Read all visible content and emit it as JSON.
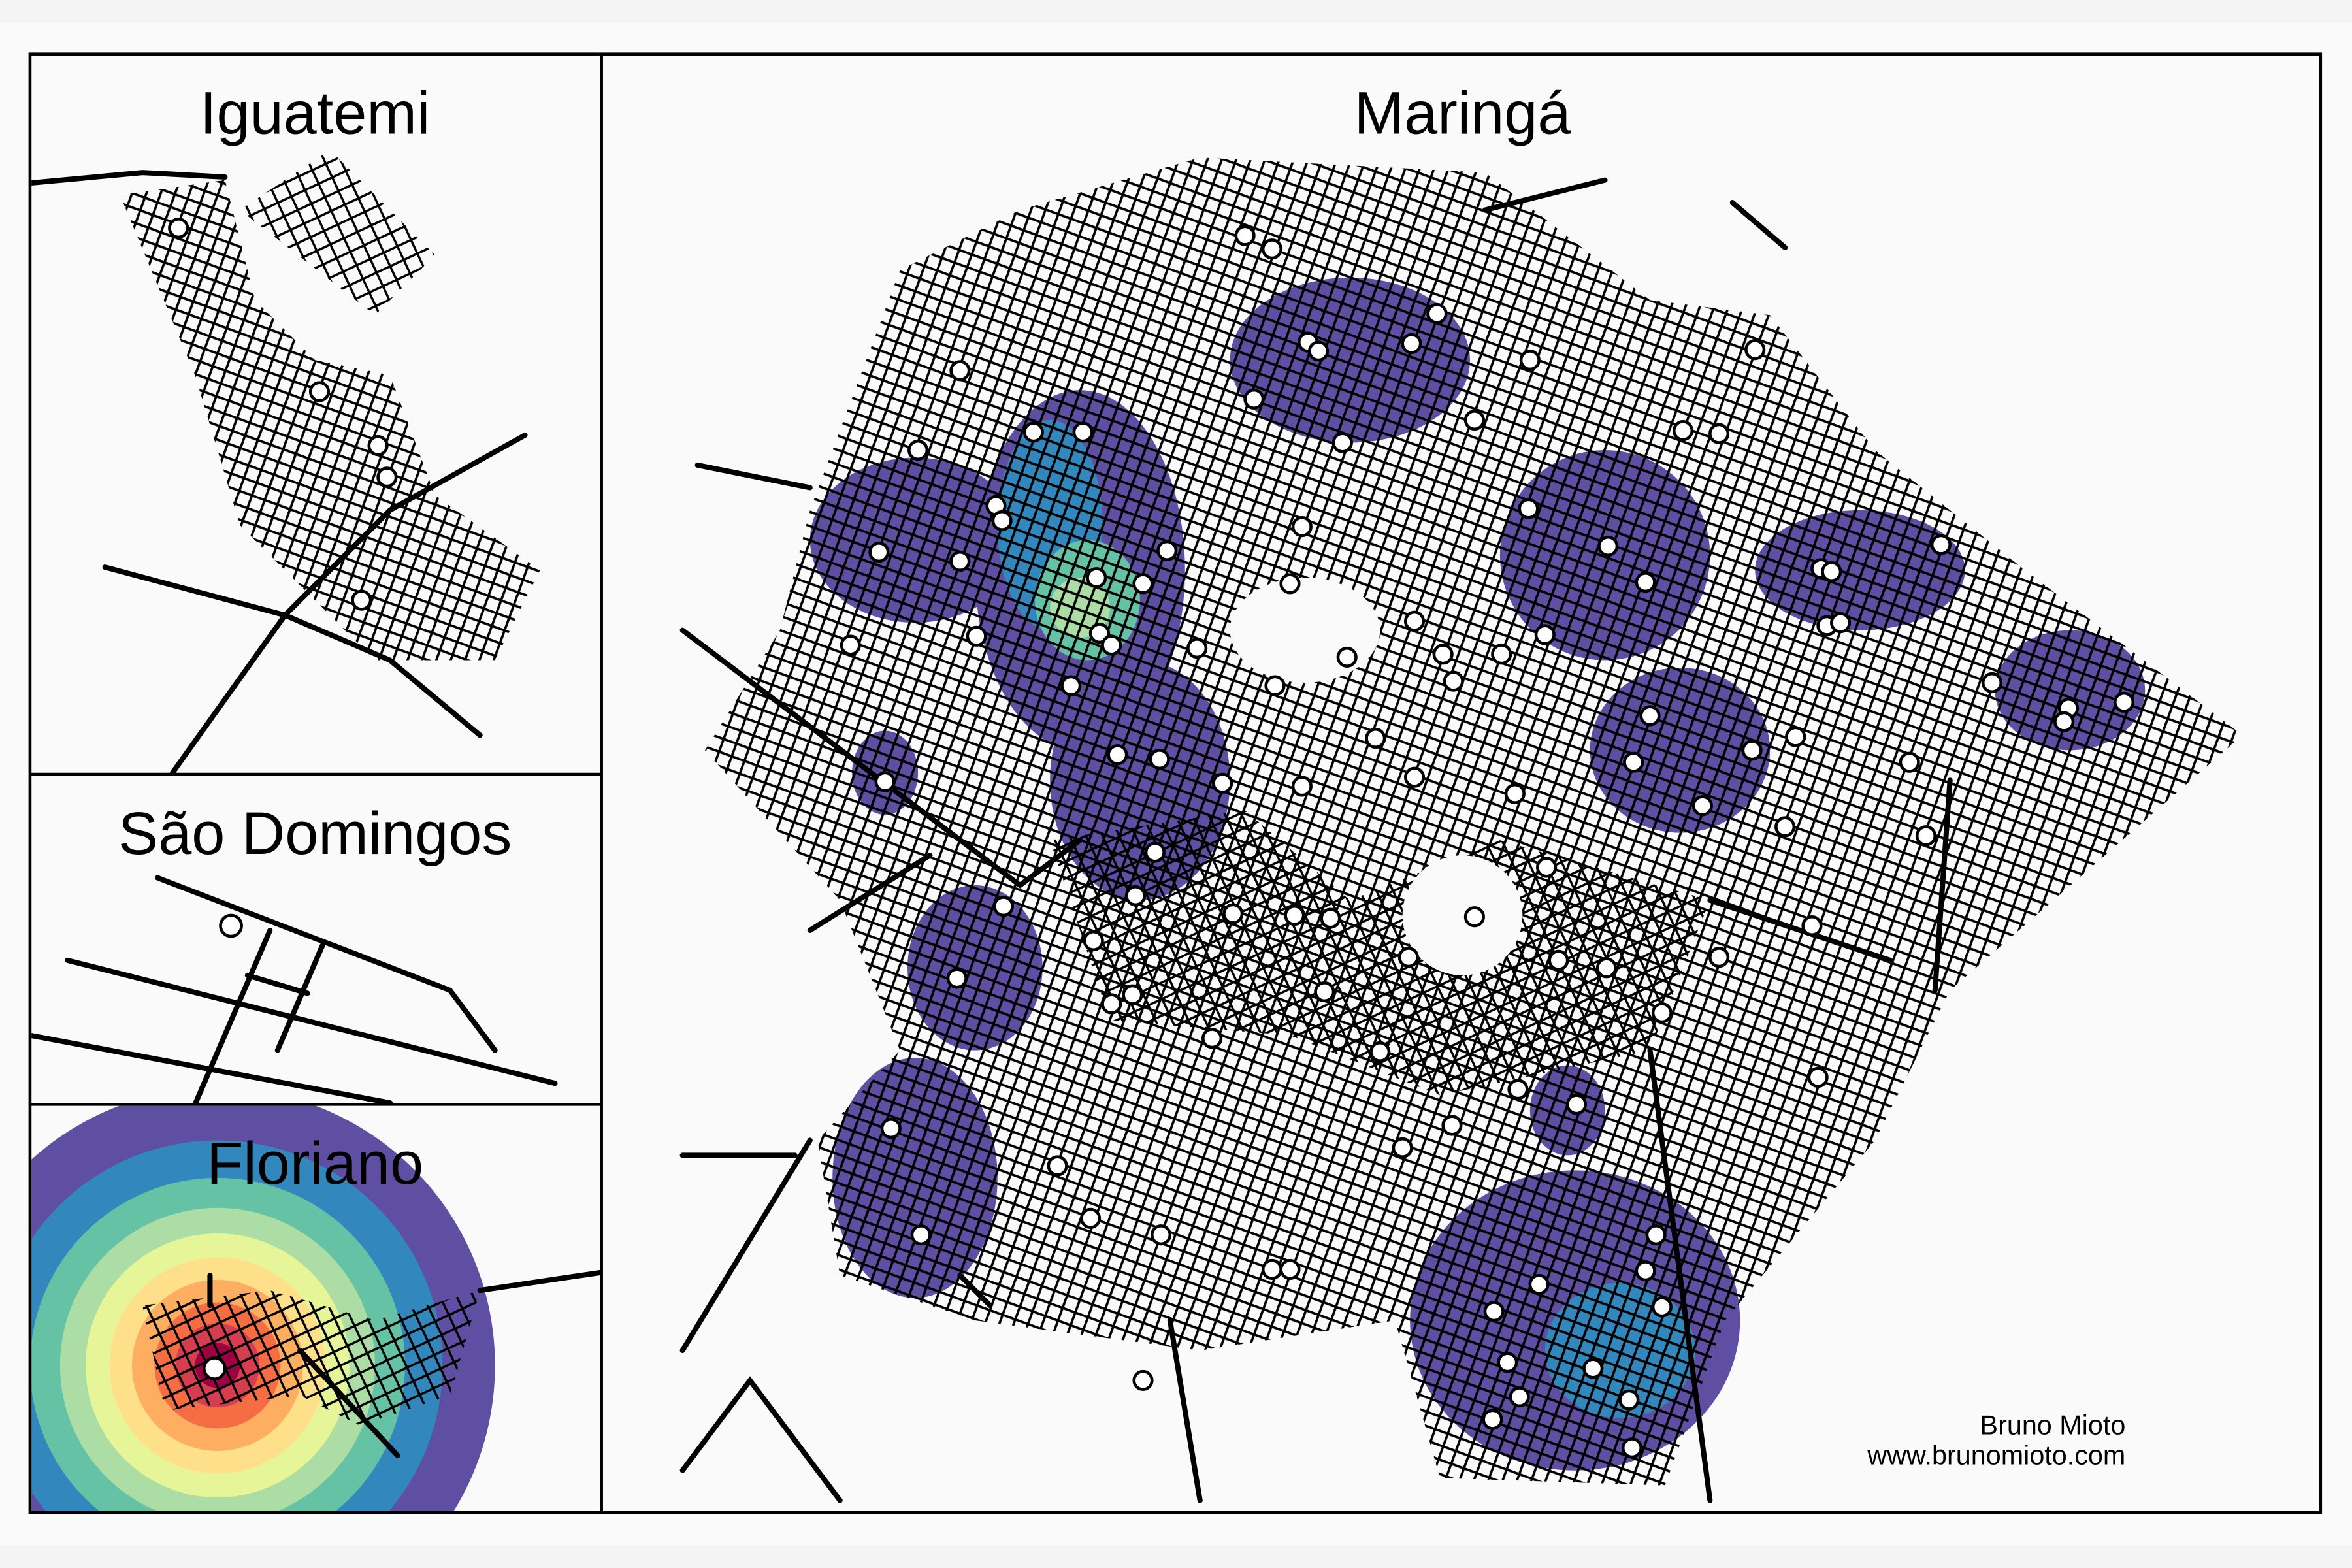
{
  "panels": [
    {
      "title": "Iguatemi"
    },
    {
      "title": "São Domingos"
    },
    {
      "title": "Floriano"
    },
    {
      "title": "Maringá"
    }
  ],
  "credit": {
    "author": "Bruno Mioto",
    "website": "www.brunomioto.com"
  }
}
